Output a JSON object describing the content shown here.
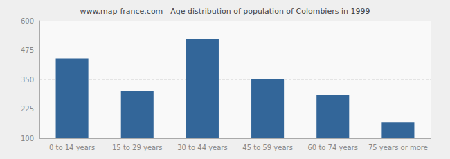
{
  "chart_data": {
    "type": "bar",
    "title": "www.map-france.com - Age distribution of population of Colombiers in 1999",
    "categories": [
      "0 to 14 years",
      "15 to 29 years",
      "30 to 44 years",
      "45 to 59 years",
      "60 to 74 years",
      "75 years or more"
    ],
    "values": [
      440,
      302,
      522,
      352,
      283,
      167
    ],
    "color": "#336699",
    "ylim": [
      100,
      600
    ],
    "yticks": [
      100,
      225,
      350,
      475,
      600
    ],
    "grid": true
  }
}
